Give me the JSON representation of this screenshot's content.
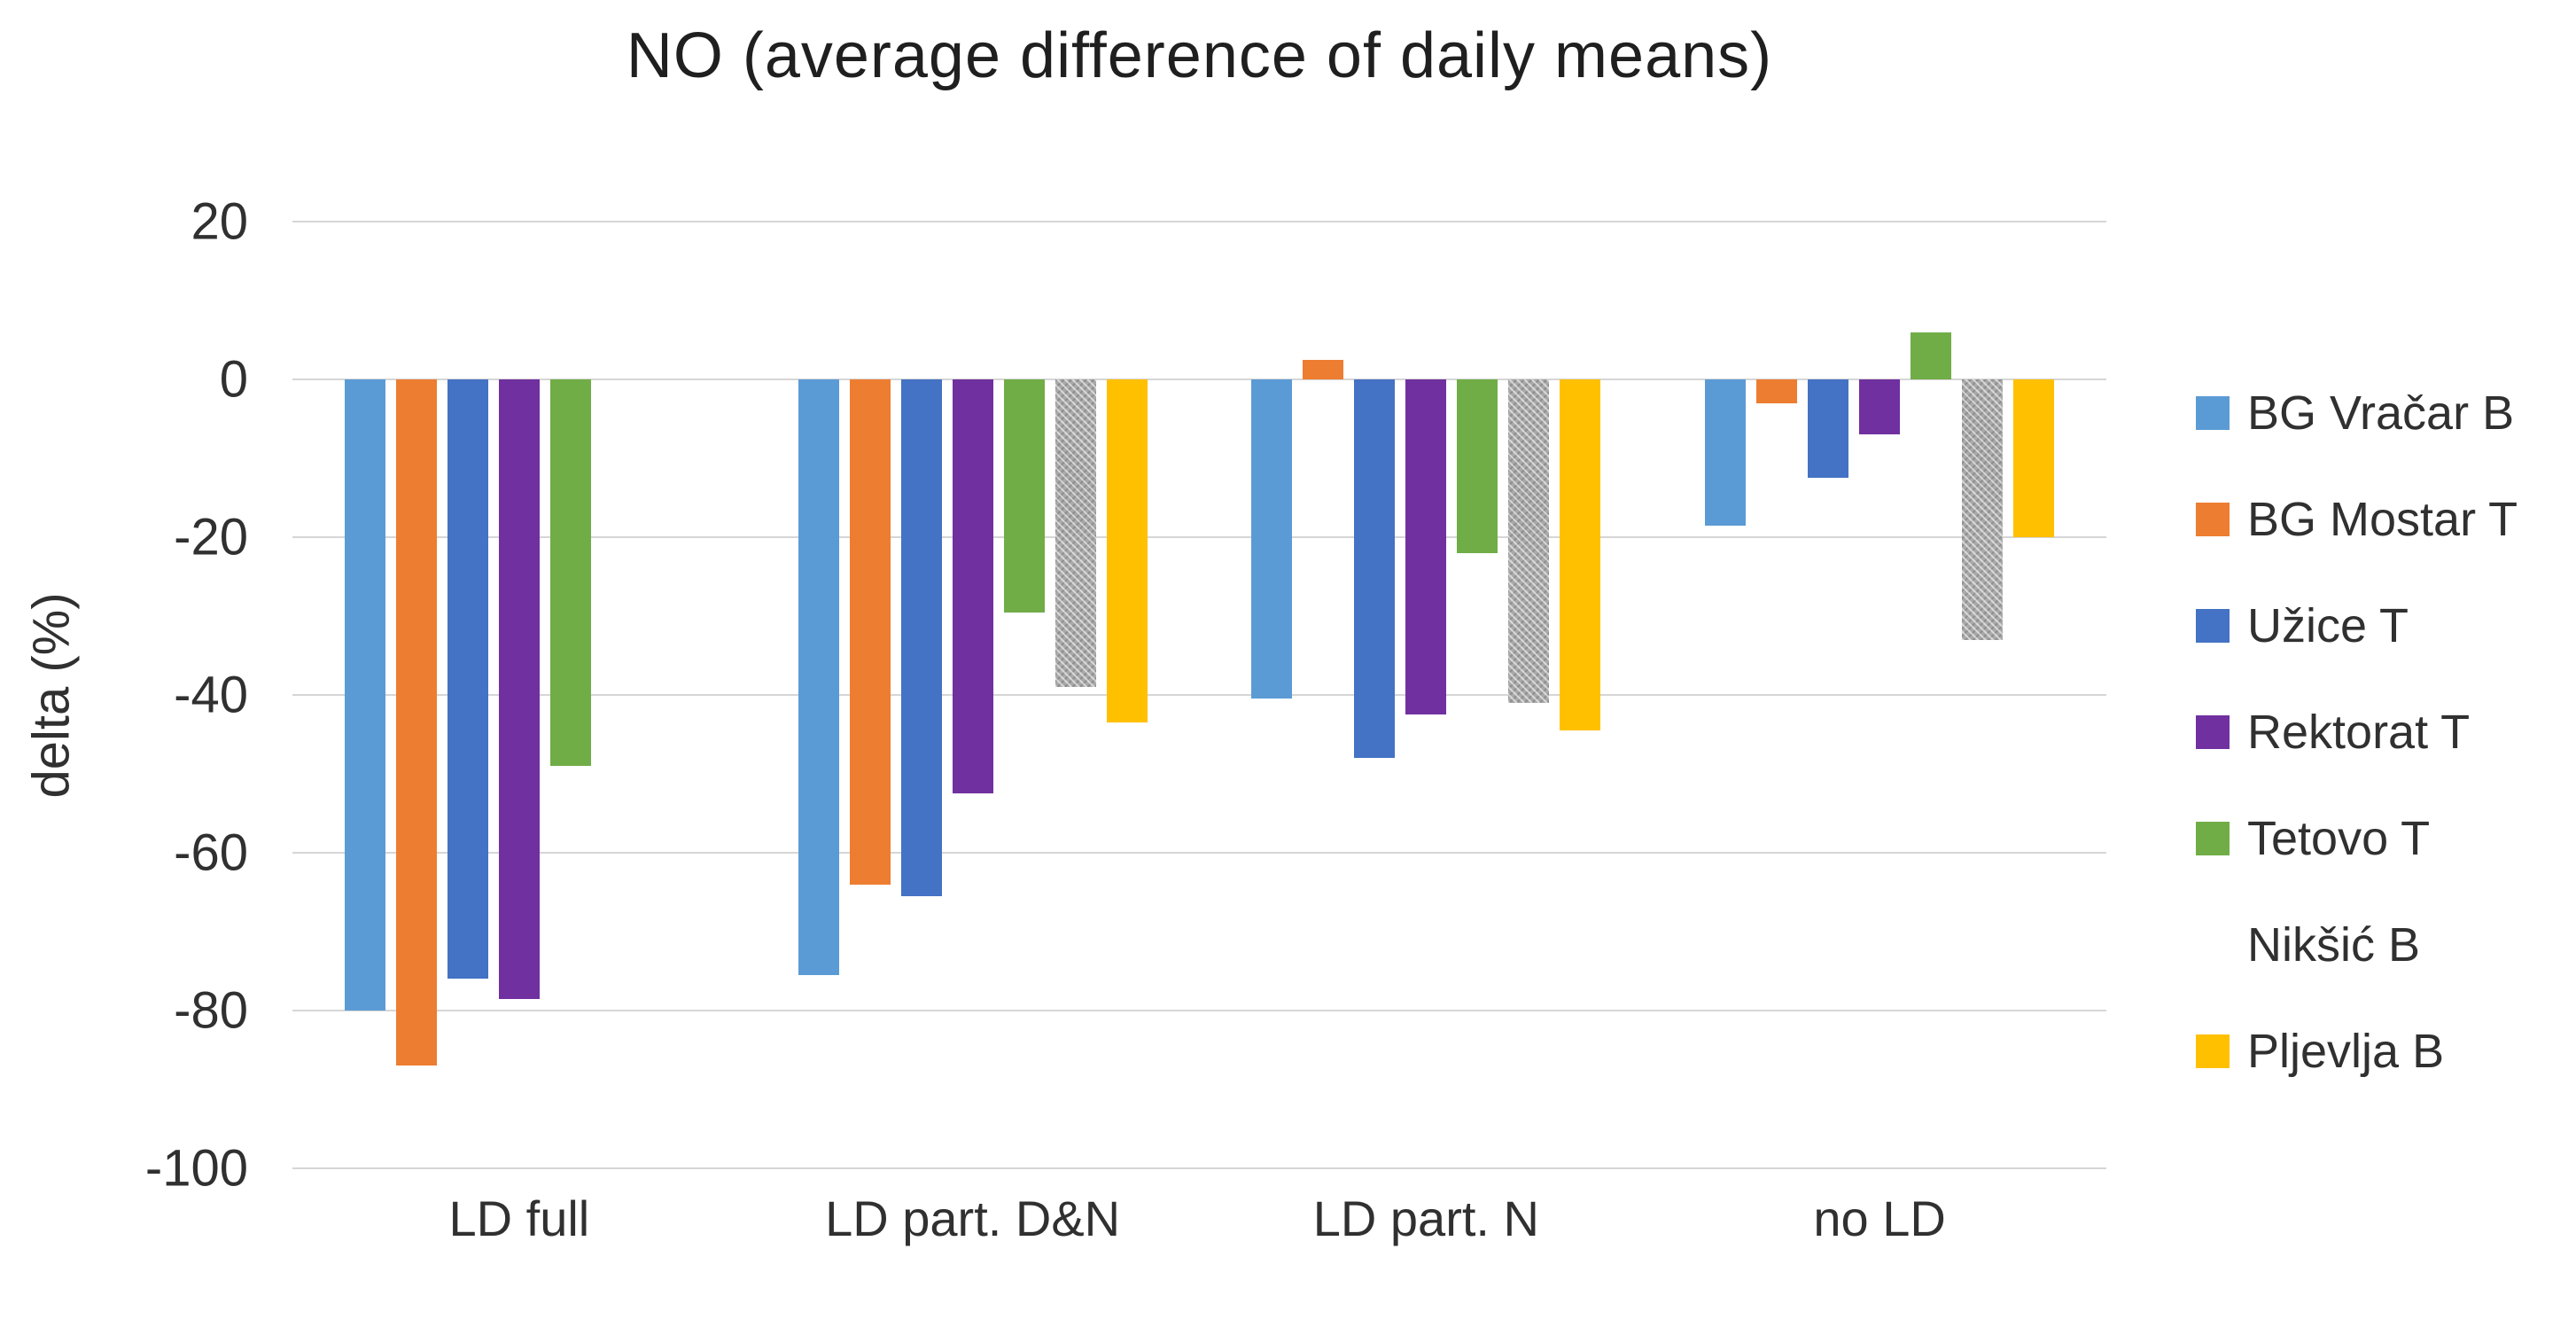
{
  "chart_data": {
    "type": "bar",
    "title": "NO (average difference of daily means)",
    "ylabel": "delta (%)",
    "xlabel": "",
    "categories": [
      "LD full",
      "LD part. D&N",
      "LD part. N",
      "no LD"
    ],
    "series": [
      {
        "name": "BG Vračar B",
        "color": "#5B9BD5",
        "pattern": "solid",
        "values": [
          -80,
          -75.5,
          -40.5,
          -18.5
        ]
      },
      {
        "name": "BG Mostar T",
        "color": "#ED7D31",
        "pattern": "solid",
        "values": [
          -87,
          -64,
          2.5,
          -3
        ]
      },
      {
        "name": "Užice T",
        "color": "#4472C4",
        "pattern": "solid",
        "values": [
          -76,
          -65.5,
          -48,
          -12.5
        ]
      },
      {
        "name": "Rektorat T",
        "color": "#7030A0",
        "pattern": "solid",
        "values": [
          -78.5,
          -52.5,
          -42.5,
          -7
        ]
      },
      {
        "name": "Tetovo T",
        "color": "#70AD47",
        "pattern": "solid",
        "values": [
          -49,
          -29.5,
          -22,
          6
        ]
      },
      {
        "name": "Nikšić B",
        "color": "#A5A5A5",
        "pattern": "hatch",
        "values": [
          null,
          -39,
          -41,
          -33
        ]
      },
      {
        "name": "Pljevlja B",
        "color": "#FFC000",
        "pattern": "solid",
        "values": [
          null,
          -43.5,
          -44.5,
          -20
        ]
      }
    ],
    "ylim": [
      -100,
      20
    ],
    "yticks": [
      20,
      0,
      -20,
      -40,
      -60,
      -80,
      -100
    ],
    "grid": true,
    "gridline_color": "#D6D6D6",
    "legend_position": "right"
  }
}
